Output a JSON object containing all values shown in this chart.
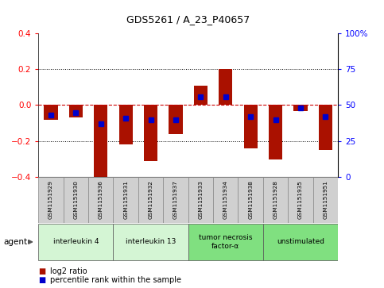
{
  "title": "GDS5261 / A_23_P40657",
  "samples": [
    "GSM1151929",
    "GSM1151930",
    "GSM1151936",
    "GSM1151931",
    "GSM1151932",
    "GSM1151937",
    "GSM1151933",
    "GSM1151934",
    "GSM1151938",
    "GSM1151928",
    "GSM1151935",
    "GSM1151951"
  ],
  "log2_ratios": [
    -0.08,
    -0.07,
    -0.4,
    -0.22,
    -0.31,
    -0.16,
    0.11,
    0.2,
    -0.24,
    -0.3,
    -0.035,
    -0.25
  ],
  "percentile_ranks": [
    43,
    45,
    37,
    41,
    40,
    40,
    56,
    56,
    42,
    40,
    48,
    42
  ],
  "groups": [
    {
      "label": "interleukin 4",
      "start": 0,
      "end": 3,
      "color": "#d4f5d4"
    },
    {
      "label": "interleukin 13",
      "start": 3,
      "end": 6,
      "color": "#d4f5d4"
    },
    {
      "label": "tumor necrosis\nfactor-α",
      "start": 6,
      "end": 9,
      "color": "#80e080"
    },
    {
      "label": "unstimulated",
      "start": 9,
      "end": 12,
      "color": "#80e080"
    }
  ],
  "bar_color": "#aa1100",
  "blue_color": "#0000cc",
  "ylim": [
    -0.4,
    0.4
  ],
  "y2lim": [
    0,
    100
  ],
  "yticks": [
    -0.4,
    -0.2,
    0.0,
    0.2,
    0.4
  ],
  "y2ticks": [
    0,
    25,
    50,
    75,
    100
  ],
  "y2ticklabels": [
    "0",
    "25",
    "50",
    "75",
    "100%"
  ],
  "background_color": "#ffffff",
  "zero_line_color": "#cc0000",
  "agent_label": "agent",
  "legend_items": [
    "log2 ratio",
    "percentile rank within the sample"
  ],
  "legend_colors": [
    "#aa1100",
    "#0000cc"
  ],
  "sample_box_color": "#d0d0d0",
  "bar_width": 0.55
}
